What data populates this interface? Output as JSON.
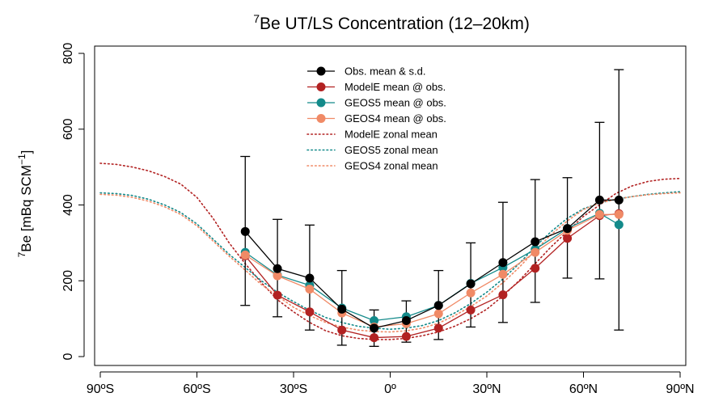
{
  "chart_data": {
    "type": "line",
    "title": {
      "sup": "7",
      "main": "Be UT/LS Concentration (12–20km)"
    },
    "ylabel": {
      "sup": "7",
      "main": "Be [mBq SCM",
      "unit_sup": "−1",
      "tail": "]"
    },
    "xlim": [
      -90,
      90
    ],
    "ylim": [
      0,
      800
    ],
    "xticks": [
      {
        "value": -90,
        "label": "90ºS"
      },
      {
        "value": -60,
        "label": "60ºS"
      },
      {
        "value": -30,
        "label": "30ºS"
      },
      {
        "value": 0,
        "label": "0º"
      },
      {
        "value": 30,
        "label": "30ºN"
      },
      {
        "value": 60,
        "label": "60ºN"
      },
      {
        "value": 90,
        "label": "90ºN"
      }
    ],
    "yticks": [
      {
        "value": 0,
        "label": "0"
      },
      {
        "value": 200,
        "label": "200"
      },
      {
        "value": 400,
        "label": "400"
      },
      {
        "value": 600,
        "label": "600"
      },
      {
        "value": 800,
        "label": "800"
      }
    ],
    "legend_position": "top-center",
    "x_obs": [
      -45,
      -35,
      -25,
      -15,
      -5,
      5,
      15,
      25,
      35,
      45,
      55,
      65,
      71
    ],
    "observations": {
      "name": "Obs. mean & s.d.",
      "color": "#000000",
      "mean": [
        330,
        232,
        207,
        125,
        75,
        95,
        135,
        192,
        248,
        303,
        338,
        413,
        413
      ],
      "sd_low": [
        135,
        105,
        70,
        30,
        27,
        38,
        45,
        78,
        90,
        143,
        207,
        205,
        70
      ],
      "sd_high": [
        528,
        362,
        347,
        227,
        123,
        147,
        227,
        300,
        407,
        467,
        472,
        618,
        757
      ]
    },
    "model_points": [
      {
        "name": "ModelE mean @ obs.",
        "color": "#b22222",
        "values": [
          266,
          162,
          118,
          70,
          50,
          53,
          75,
          123,
          163,
          233,
          312,
          372,
          377
        ]
      },
      {
        "name": "GEOS5 mean @ obs.",
        "color": "#138a8a",
        "values": [
          275,
          215,
          188,
          128,
          95,
          105,
          135,
          193,
          235,
          283,
          338,
          378,
          348
        ]
      },
      {
        "name": "GEOS4 mean @ obs.",
        "color": "#f08a66",
        "values": [
          268,
          213,
          178,
          115,
          78,
          87,
          113,
          168,
          217,
          275,
          333,
          375,
          375
        ]
      }
    ],
    "zonal_means": [
      {
        "name": "ModelE zonal mean",
        "color": "#b22222",
        "x": [
          -90,
          -85,
          -80,
          -75,
          -70,
          -65,
          -60,
          -55,
          -50,
          -45,
          -40,
          -35,
          -30,
          -25,
          -20,
          -15,
          -10,
          -5,
          0,
          5,
          10,
          15,
          20,
          25,
          30,
          35,
          40,
          45,
          50,
          55,
          60,
          65,
          70,
          75,
          80,
          85,
          90
        ],
        "y": [
          510,
          507,
          500,
          490,
          475,
          455,
          420,
          365,
          300,
          245,
          195,
          150,
          118,
          90,
          68,
          55,
          48,
          45,
          45,
          48,
          55,
          65,
          80,
          100,
          125,
          160,
          200,
          245,
          290,
          330,
          370,
          400,
          430,
          450,
          462,
          468,
          470
        ]
      },
      {
        "name": "GEOS5 zonal mean",
        "color": "#138a8a",
        "x": [
          -90,
          -85,
          -80,
          -75,
          -70,
          -65,
          -60,
          -55,
          -50,
          -45,
          -40,
          -35,
          -30,
          -25,
          -20,
          -15,
          -10,
          -5,
          0,
          5,
          10,
          15,
          20,
          25,
          30,
          35,
          40,
          45,
          50,
          55,
          60,
          65,
          70,
          75,
          80,
          85,
          90
        ],
        "y": [
          432,
          430,
          425,
          415,
          400,
          380,
          350,
          310,
          270,
          235,
          200,
          170,
          145,
          122,
          103,
          90,
          80,
          75,
          72,
          75,
          82,
          95,
          115,
          140,
          170,
          205,
          245,
          290,
          330,
          365,
          390,
          405,
          415,
          422,
          428,
          432,
          435
        ]
      },
      {
        "name": "GEOS4 zonal mean",
        "color": "#f08a66",
        "x": [
          -90,
          -85,
          -80,
          -75,
          -70,
          -65,
          -60,
          -55,
          -50,
          -45,
          -40,
          -35,
          -30,
          -25,
          -20,
          -15,
          -10,
          -5,
          0,
          5,
          10,
          15,
          20,
          25,
          30,
          35,
          40,
          45,
          50,
          55,
          60,
          65,
          70,
          75,
          80,
          85,
          90
        ],
        "y": [
          428,
          426,
          420,
          410,
          395,
          375,
          345,
          305,
          265,
          228,
          190,
          160,
          130,
          108,
          90,
          78,
          70,
          66,
          65,
          68,
          75,
          88,
          108,
          132,
          160,
          195,
          235,
          280,
          322,
          358,
          388,
          405,
          415,
          422,
          427,
          430,
          432
        ]
      }
    ]
  }
}
